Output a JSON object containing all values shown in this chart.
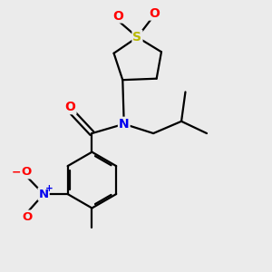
{
  "background_color": "#ebebeb",
  "bond_color": "#000000",
  "atom_colors": {
    "S": "#b8b800",
    "O": "#ff0000",
    "N": "#0000ee",
    "C": "#000000"
  },
  "figsize": [
    3.0,
    3.0
  ],
  "dpi": 100,
  "lw": 1.6
}
